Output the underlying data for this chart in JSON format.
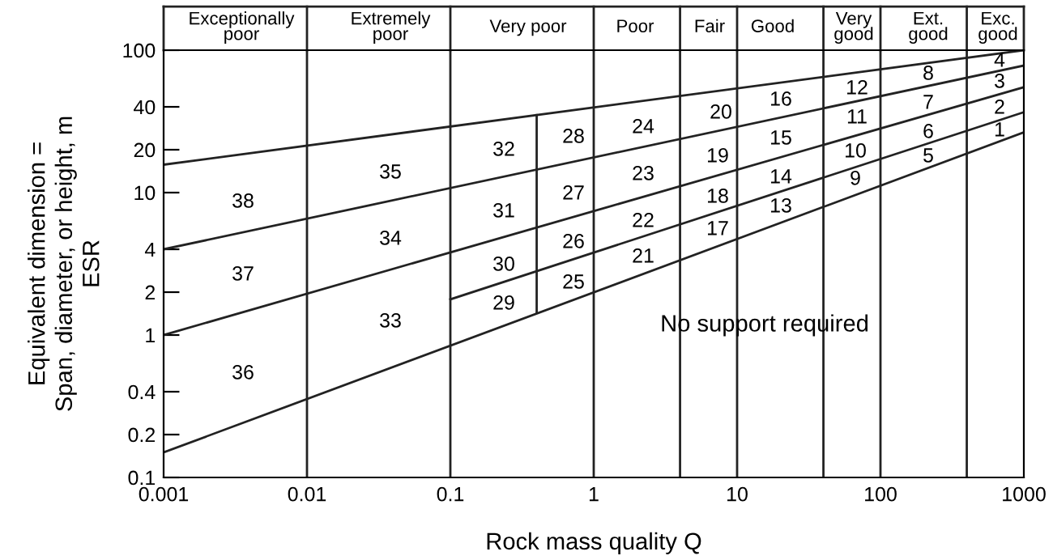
{
  "chart_data": {
    "type": "line",
    "xlabel": "Rock mass quality Q",
    "ylabel": "Equivalent dimension =\nSpan, diameter, or height, m\nESR",
    "log": "xy",
    "xlim": [
      0.001,
      1000
    ],
    "ylim": [
      0.1,
      100
    ],
    "xticks": [
      0.001,
      0.01,
      0.1,
      1,
      10,
      100,
      1000
    ],
    "yticks": [
      0.1,
      0.2,
      0.4,
      1,
      2,
      4,
      10,
      20,
      40,
      100
    ],
    "grid": false,
    "legend": false,
    "marker": "none",
    "line_style": "solid",
    "series": [
      {
        "color": "#222222",
        "x": [
          0.001,
          1000
        ],
        "values": [
          0.15,
          26.5
        ]
      },
      {
        "color": "#222222",
        "x": [
          0.1,
          1000
        ],
        "values": [
          1.78,
          36.7
        ]
      },
      {
        "color": "#222222",
        "x": [
          0.001,
          1000
        ],
        "values": [
          1,
          55
        ]
      },
      {
        "color": "#222222",
        "x": [
          0.001,
          1000
        ],
        "values": [
          4,
          78
        ]
      },
      {
        "color": "#222222",
        "x": [
          0.001,
          1000
        ],
        "values": [
          15.7,
          100
        ]
      },
      {
        "color": "#222222",
        "x": [
          0.4,
          0.4
        ],
        "values": [
          1.45,
          35
        ]
      }
    ],
    "ref_lines": [
      {
        "axis": "x",
        "value": 0.01,
        "color": "#222222"
      },
      {
        "axis": "x",
        "value": 0.1,
        "color": "#222222"
      },
      {
        "axis": "x",
        "value": 1,
        "color": "#222222"
      },
      {
        "axis": "x",
        "value": 4,
        "color": "#222222"
      },
      {
        "axis": "x",
        "value": 10,
        "color": "#222222"
      },
      {
        "axis": "x",
        "value": 40,
        "color": "#222222"
      },
      {
        "axis": "x",
        "value": 100,
        "color": "#222222"
      },
      {
        "axis": "x",
        "value": 400,
        "color": "#222222"
      }
    ],
    "annotations": [
      "Exceptionally\npoor",
      "Extremely\npoor",
      "Very poor",
      "Poor",
      "Fair",
      "Good",
      "Very\ngood",
      "Ext.\ngood",
      "Exc.\ngood",
      "38",
      "37",
      "36",
      "35",
      "34",
      "33",
      "32",
      "31",
      "30",
      "29",
      "28",
      "27",
      "26",
      "25",
      "24",
      "23",
      "22",
      "21",
      "20",
      "19",
      "18",
      "17",
      "16",
      "15",
      "14",
      "13",
      "12",
      "11",
      "10",
      "9",
      "8",
      "7",
      "6",
      "5",
      "4",
      "3",
      "2",
      "1",
      "No support required"
    ]
  }
}
